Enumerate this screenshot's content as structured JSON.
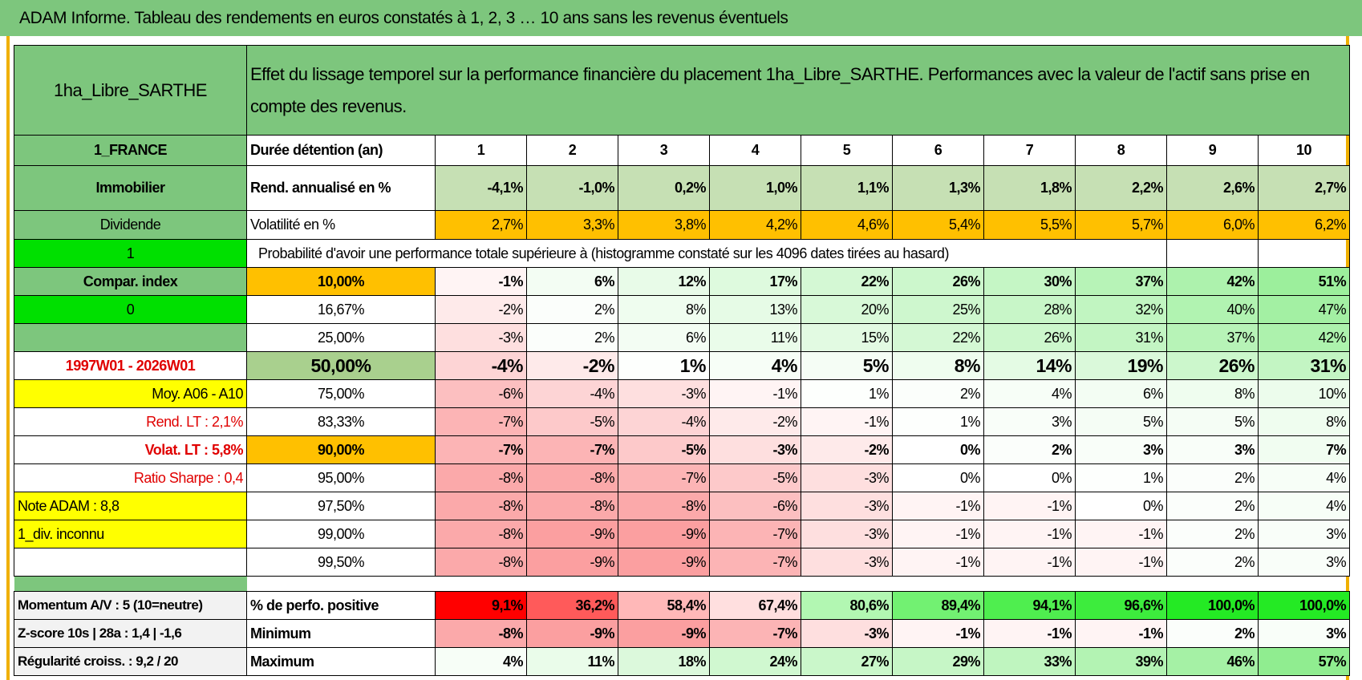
{
  "header": {
    "title": "ADAM Informe. Tableau des rendements en euros constatés à 1, 2, 3 … 10 ans sans les revenus éventuels"
  },
  "table": {
    "asset": "1ha_Libre_SARTHE",
    "description": "Effet du lissage temporel sur la performance financière du placement 1ha_Libre_SARTHE. Performances avec la valeur de l'actif sans prise en compte des revenus.",
    "rows": [
      {
        "label": "1_FRANCE",
        "cells": [
          "Durée détention (an)",
          "1",
          "2",
          "3",
          "4",
          "5",
          "6",
          "7",
          "8",
          "9",
          "10"
        ]
      },
      {
        "label": "Immobilier",
        "cells": [
          "Rend. annualisé en %",
          "-4,1%",
          "-1,0%",
          "0,2%",
          "1,0%",
          "1,1%",
          "1,3%",
          "1,8%",
          "2,2%",
          "2,6%",
          "2,7%"
        ]
      },
      {
        "label": "Dividende",
        "cells": [
          "Volatilité en %",
          "2,7%",
          "3,3%",
          "3,8%",
          "4,2%",
          "4,6%",
          "5,4%",
          "5,5%",
          "5,7%",
          "6,0%",
          "6,2%"
        ]
      },
      {
        "label": "1",
        "note": "Probabilité d'avoir une performance totale supérieure à (histogramme constaté sur les 4096 dates tirées au hasard)"
      },
      {
        "label": "Compar. index",
        "cells": [
          "10,00%",
          "-1%",
          "6%",
          "12%",
          "17%",
          "22%",
          "26%",
          "30%",
          "37%",
          "42%",
          "51%"
        ]
      },
      {
        "label": "0",
        "cells": [
          "16,67%",
          "-2%",
          "2%",
          "8%",
          "13%",
          "20%",
          "25%",
          "28%",
          "32%",
          "40%",
          "47%"
        ]
      },
      {
        "cells": [
          "25,00%",
          "-3%",
          "2%",
          "6%",
          "11%",
          "15%",
          "22%",
          "26%",
          "31%",
          "37%",
          "42%"
        ]
      },
      {
        "label": "1997W01 - 2026W01",
        "cells": [
          "50,00%",
          "-4%",
          "-2%",
          "1%",
          "4%",
          "5%",
          "8%",
          "14%",
          "19%",
          "26%",
          "31%"
        ]
      },
      {
        "label": "Moy. A06 - A10",
        "cells": [
          "75,00%",
          "-6%",
          "-4%",
          "-3%",
          "-1%",
          "1%",
          "2%",
          "4%",
          "6%",
          "8%",
          "10%"
        ]
      },
      {
        "label": "Rend. LT :   2,1%",
        "cells": [
          "83,33%",
          "-7%",
          "-5%",
          "-4%",
          "-2%",
          "-1%",
          "1%",
          "3%",
          "5%",
          "5%",
          "8%"
        ]
      },
      {
        "label": "Volat. LT :   5,8%",
        "cells": [
          "90,00%",
          "-7%",
          "-7%",
          "-5%",
          "-3%",
          "-2%",
          "0%",
          "2%",
          "3%",
          "3%",
          "7%"
        ]
      },
      {
        "label": "Ratio Sharpe :    0,4",
        "cells": [
          "95,00%",
          "-8%",
          "-8%",
          "-7%",
          "-5%",
          "-3%",
          "0%",
          "0%",
          "1%",
          "2%",
          "4%"
        ]
      },
      {
        "label": "Note ADAM : 8,8",
        "cells": [
          "97,50%",
          "-8%",
          "-8%",
          "-8%",
          "-6%",
          "-3%",
          "-1%",
          "-1%",
          "0%",
          "2%",
          "4%"
        ]
      },
      {
        "label": "1_div. inconnu",
        "cells": [
          "99,00%",
          "-8%",
          "-9%",
          "-9%",
          "-7%",
          "-3%",
          "-1%",
          "-1%",
          "-1%",
          "2%",
          "3%"
        ]
      },
      {
        "cells": [
          "99,50%",
          "-8%",
          "-9%",
          "-9%",
          "-7%",
          "-3%",
          "-1%",
          "-1%",
          "-1%",
          "2%",
          "3%"
        ]
      },
      {
        "label": "Momentum A/V : 5 (10=neutre)",
        "cells": [
          "% de perfo. positive",
          "9,1%",
          "36,2%",
          "58,4%",
          "67,4%",
          "80,6%",
          "89,4%",
          "94,1%",
          "96,6%",
          "100,0%",
          "100,0%"
        ]
      },
      {
        "label": "Z-score 10s | 28a : 1,4 | -1,6",
        "cells": [
          "Minimum",
          "-8%",
          "-9%",
          "-9%",
          "-7%",
          "-3%",
          "-1%",
          "-1%",
          "-1%",
          "2%",
          "3%"
        ]
      },
      {
        "label": "Régularité croiss. : 9,2 / 20",
        "cells": [
          "Maximum",
          "4%",
          "11%",
          "18%",
          "24%",
          "27%",
          "29%",
          "33%",
          "39%",
          "46%",
          "57%"
        ]
      }
    ]
  }
}
